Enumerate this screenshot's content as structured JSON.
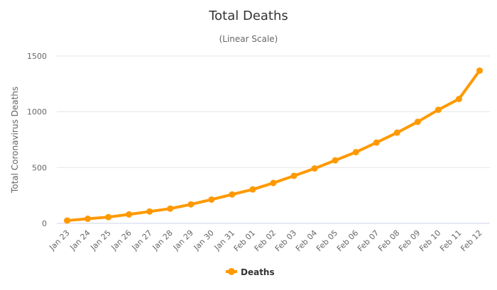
{
  "chart_data": {
    "type": "line",
    "title": "Total Deaths",
    "subtitle": "(Linear Scale)",
    "xlabel": "",
    "ylabel": "Total Coronavirus Deaths",
    "ylim": [
      0,
      1500
    ],
    "y_ticks": [
      0,
      500,
      1000,
      1500
    ],
    "grid": true,
    "legend_position": "bottom-center",
    "categories": [
      "Jan 23",
      "Jan 24",
      "Jan 25",
      "Jan 26",
      "Jan 27",
      "Jan 28",
      "Jan 29",
      "Jan 30",
      "Jan 31",
      "Feb 01",
      "Feb 02",
      "Feb 03",
      "Feb 04",
      "Feb 05",
      "Feb 06",
      "Feb 07",
      "Feb 08",
      "Feb 09",
      "Feb 10",
      "Feb 11",
      "Feb 12"
    ],
    "series": [
      {
        "name": "Deaths",
        "color": "#ff9900",
        "values": [
          25,
          41,
          56,
          80,
          106,
          132,
          170,
          213,
          259,
          304,
          362,
          426,
          492,
          565,
          638,
          724,
          813,
          910,
          1018,
          1115,
          1369
        ]
      }
    ]
  }
}
